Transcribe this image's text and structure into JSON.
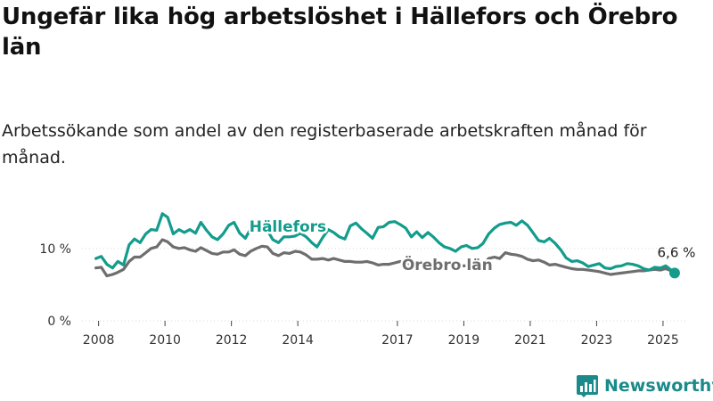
{
  "title": "Ungefär lika hög arbetslöshet i Hällefors och Örebro län",
  "subtitle": "Arbetssökande som andel av den registerbaserade arbetskraften månad för månad.",
  "brand": {
    "name": "Newsworthy",
    "icon": "newsworthy-logo-icon"
  },
  "colors": {
    "hallefors": "#139c8c",
    "orebro": "#6e6e6e"
  },
  "chart_data": {
    "type": "line",
    "xlim": [
      2007.5,
      2025.7
    ],
    "ylim": [
      0,
      16
    ],
    "y_ticks": [
      0,
      10
    ],
    "y_tick_labels": [
      "0 %",
      "10 %"
    ],
    "x_ticks": [
      2008,
      2010,
      2012,
      2014,
      2017,
      2019,
      2021,
      2023,
      2025
    ],
    "x_tick_labels": [
      "2008",
      "2010",
      "2012",
      "2014",
      "2017",
      "2019",
      "2021",
      "2023",
      "2025"
    ],
    "grid": "horizontal",
    "end_label": "6,6 %",
    "series": [
      {
        "name": "Hällefors",
        "key": "hallefors",
        "x": [
          2007.92,
          2008.08,
          2008.25,
          2008.42,
          2008.58,
          2008.75,
          2008.92,
          2009.08,
          2009.25,
          2009.42,
          2009.58,
          2009.75,
          2009.92,
          2010.08,
          2010.25,
          2010.42,
          2010.58,
          2010.75,
          2010.92,
          2011.08,
          2011.25,
          2011.42,
          2011.58,
          2011.75,
          2011.92,
          2012.08,
          2012.25,
          2012.42,
          2012.58,
          2012.75,
          2012.92,
          2013.08,
          2013.25,
          2013.42,
          2013.58,
          2013.75,
          2013.92,
          2014.08,
          2014.25,
          2014.42,
          2014.58,
          2014.75,
          2014.92,
          2015.08,
          2015.25,
          2015.42,
          2015.58,
          2015.75,
          2015.92,
          2016.08,
          2016.25,
          2016.42,
          2016.58,
          2016.75,
          2016.92,
          2017.08,
          2017.25,
          2017.42,
          2017.58,
          2017.75,
          2017.92,
          2018.08,
          2018.25,
          2018.42,
          2018.58,
          2018.75,
          2018.92,
          2019.08,
          2019.25,
          2019.42,
          2019.58,
          2019.75,
          2019.92,
          2020.08,
          2020.25,
          2020.42,
          2020.58,
          2020.75,
          2020.92,
          2021.08,
          2021.25,
          2021.42,
          2021.58,
          2021.75,
          2021.92,
          2022.08,
          2022.25,
          2022.42,
          2022.58,
          2022.75,
          2022.92,
          2023.08,
          2023.25,
          2023.42,
          2023.58,
          2023.75,
          2023.92,
          2024.08,
          2024.25,
          2024.42,
          2024.58,
          2024.75,
          2024.92,
          2025.08,
          2025.25,
          2025.35
        ],
        "values": [
          8.6,
          8.9,
          7.8,
          7.3,
          8.2,
          7.7,
          10.5,
          11.3,
          10.8,
          12.0,
          12.6,
          12.5,
          14.8,
          14.3,
          12.0,
          12.6,
          12.2,
          12.6,
          12.1,
          13.6,
          12.5,
          11.6,
          11.2,
          12.0,
          13.2,
          13.6,
          12.1,
          11.4,
          12.7,
          13.0,
          12.8,
          12.5,
          11.2,
          10.8,
          11.6,
          11.6,
          11.7,
          12.1,
          11.6,
          10.8,
          10.2,
          11.5,
          12.6,
          12.2,
          11.6,
          11.3,
          13.1,
          13.5,
          12.7,
          12.1,
          11.4,
          12.9,
          13.0,
          13.6,
          13.7,
          13.3,
          12.8,
          11.6,
          12.3,
          11.5,
          12.2,
          11.6,
          10.8,
          10.2,
          10.0,
          9.6,
          10.2,
          10.4,
          10.0,
          10.1,
          10.7,
          12.0,
          12.8,
          13.3,
          13.5,
          13.6,
          13.2,
          13.8,
          13.2,
          12.2,
          11.1,
          10.9,
          11.4,
          10.7,
          9.8,
          8.7,
          8.2,
          8.3,
          8.0,
          7.5,
          7.7,
          7.9,
          7.3,
          7.2,
          7.5,
          7.6,
          7.9,
          7.8,
          7.6,
          7.2,
          7.0,
          7.4,
          7.3,
          7.6,
          7.0,
          6.6
        ]
      },
      {
        "name": "Örebro län",
        "key": "orebro",
        "x": [
          2007.92,
          2008.08,
          2008.25,
          2008.42,
          2008.58,
          2008.75,
          2008.92,
          2009.08,
          2009.25,
          2009.42,
          2009.58,
          2009.75,
          2009.92,
          2010.08,
          2010.25,
          2010.42,
          2010.58,
          2010.75,
          2010.92,
          2011.08,
          2011.25,
          2011.42,
          2011.58,
          2011.75,
          2011.92,
          2012.08,
          2012.25,
          2012.42,
          2012.58,
          2012.75,
          2012.92,
          2013.08,
          2013.25,
          2013.42,
          2013.58,
          2013.75,
          2013.92,
          2014.08,
          2014.25,
          2014.42,
          2014.58,
          2014.75,
          2014.92,
          2015.08,
          2015.25,
          2015.42,
          2015.58,
          2015.75,
          2015.92,
          2016.08,
          2016.25,
          2016.42,
          2016.58,
          2016.75,
          2016.92,
          2017.08,
          2017.25,
          2017.42,
          2017.58,
          2017.75,
          2017.92,
          2018.08,
          2018.25,
          2018.42,
          2018.58,
          2018.75,
          2018.92,
          2019.08,
          2019.25,
          2019.42,
          2019.58,
          2019.75,
          2019.92,
          2020.08,
          2020.25,
          2020.42,
          2020.58,
          2020.75,
          2020.92,
          2021.08,
          2021.25,
          2021.42,
          2021.58,
          2021.75,
          2021.92,
          2022.08,
          2022.25,
          2022.42,
          2022.58,
          2022.75,
          2022.92,
          2023.08,
          2023.25,
          2023.42,
          2023.58,
          2023.75,
          2023.92,
          2024.08,
          2024.25,
          2024.42,
          2024.58,
          2024.75,
          2024.92,
          2025.08,
          2025.25,
          2025.35
        ],
        "values": [
          7.3,
          7.4,
          6.2,
          6.4,
          6.7,
          7.1,
          8.2,
          8.8,
          8.8,
          9.4,
          10.0,
          10.2,
          11.2,
          10.9,
          10.2,
          10.0,
          10.1,
          9.8,
          9.6,
          10.1,
          9.7,
          9.3,
          9.2,
          9.5,
          9.5,
          9.8,
          9.2,
          9.0,
          9.6,
          10.0,
          10.3,
          10.2,
          9.3,
          9.0,
          9.4,
          9.3,
          9.6,
          9.5,
          9.1,
          8.5,
          8.5,
          8.6,
          8.4,
          8.6,
          8.4,
          8.2,
          8.2,
          8.1,
          8.1,
          8.2,
          8.0,
          7.7,
          7.8,
          7.8,
          8.0,
          8.2,
          8.0,
          7.8,
          7.7,
          7.5,
          7.6,
          7.8,
          7.9,
          7.8,
          7.7,
          7.7,
          7.6,
          7.6,
          7.5,
          7.5,
          7.7,
          8.6,
          8.8,
          8.6,
          9.4,
          9.2,
          9.1,
          8.9,
          8.5,
          8.3,
          8.4,
          8.1,
          7.7,
          7.8,
          7.6,
          7.4,
          7.2,
          7.1,
          7.1,
          7.0,
          6.9,
          6.8,
          6.6,
          6.4,
          6.5,
          6.6,
          6.7,
          6.8,
          6.9,
          6.9,
          7.0,
          7.1,
          7.0,
          7.2,
          6.9,
          6.6
        ]
      }
    ]
  }
}
